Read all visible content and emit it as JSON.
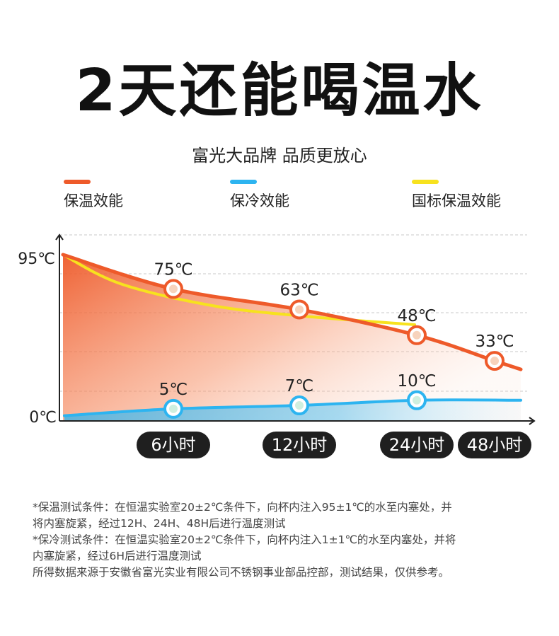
{
  "header": {
    "title": "2天还能喝温水",
    "subtitle": "富光大品牌 品质更放心"
  },
  "colors": {
    "hot": "#EE5A2A",
    "cold": "#2DB4F0",
    "standard": "#F7E21E",
    "badge_bg": "#1f1f1f"
  },
  "chart_data": {
    "type": "line",
    "categories": [
      "6小时",
      "12小时",
      "24小时",
      "48小时"
    ],
    "y_tick_labels": [
      "95℃",
      "0℃"
    ],
    "ylim": [
      0,
      95
    ],
    "grid": true,
    "legend_position": "top",
    "series": [
      {
        "name": "保温效能",
        "color": "#EE5A2A",
        "start": 95,
        "points": [
          {
            "x": "6小时",
            "y": 75,
            "label": "75℃"
          },
          {
            "x": "12小时",
            "y": 63,
            "label": "63℃"
          },
          {
            "x": "24小时",
            "y": 48,
            "label": "48℃"
          },
          {
            "x": "48小时",
            "y": 33,
            "label": "33℃"
          }
        ]
      },
      {
        "name": "保冷效能",
        "color": "#2DB4F0",
        "start": 1,
        "points": [
          {
            "x": "6小时",
            "y": 5,
            "label": "5℃"
          },
          {
            "x": "12小时",
            "y": 7,
            "label": "7℃"
          },
          {
            "x": "24小时",
            "y": 10,
            "label": "10℃"
          }
        ]
      },
      {
        "name": "国标保温效能",
        "color": "#F7E21E",
        "start": 95,
        "points": []
      }
    ]
  },
  "notes": [
    "*保温测试条件：在恒温实验室20±2℃条件下，向杯内注入95±1℃的水至内塞处，并",
    "将内塞旋紧，经过12H、24H、48H后进行温度测试",
    "*保冷测试条件：在恒温实验室20±2℃条件下，向杯内注入1±1℃的水至内塞处，并将",
    "内塞旋紧，经过6H后进行温度测试",
    "所得数据来源于安徽省富光实业有限公司不锈钢事业部品控部，测试结果，仅供参考。"
  ]
}
